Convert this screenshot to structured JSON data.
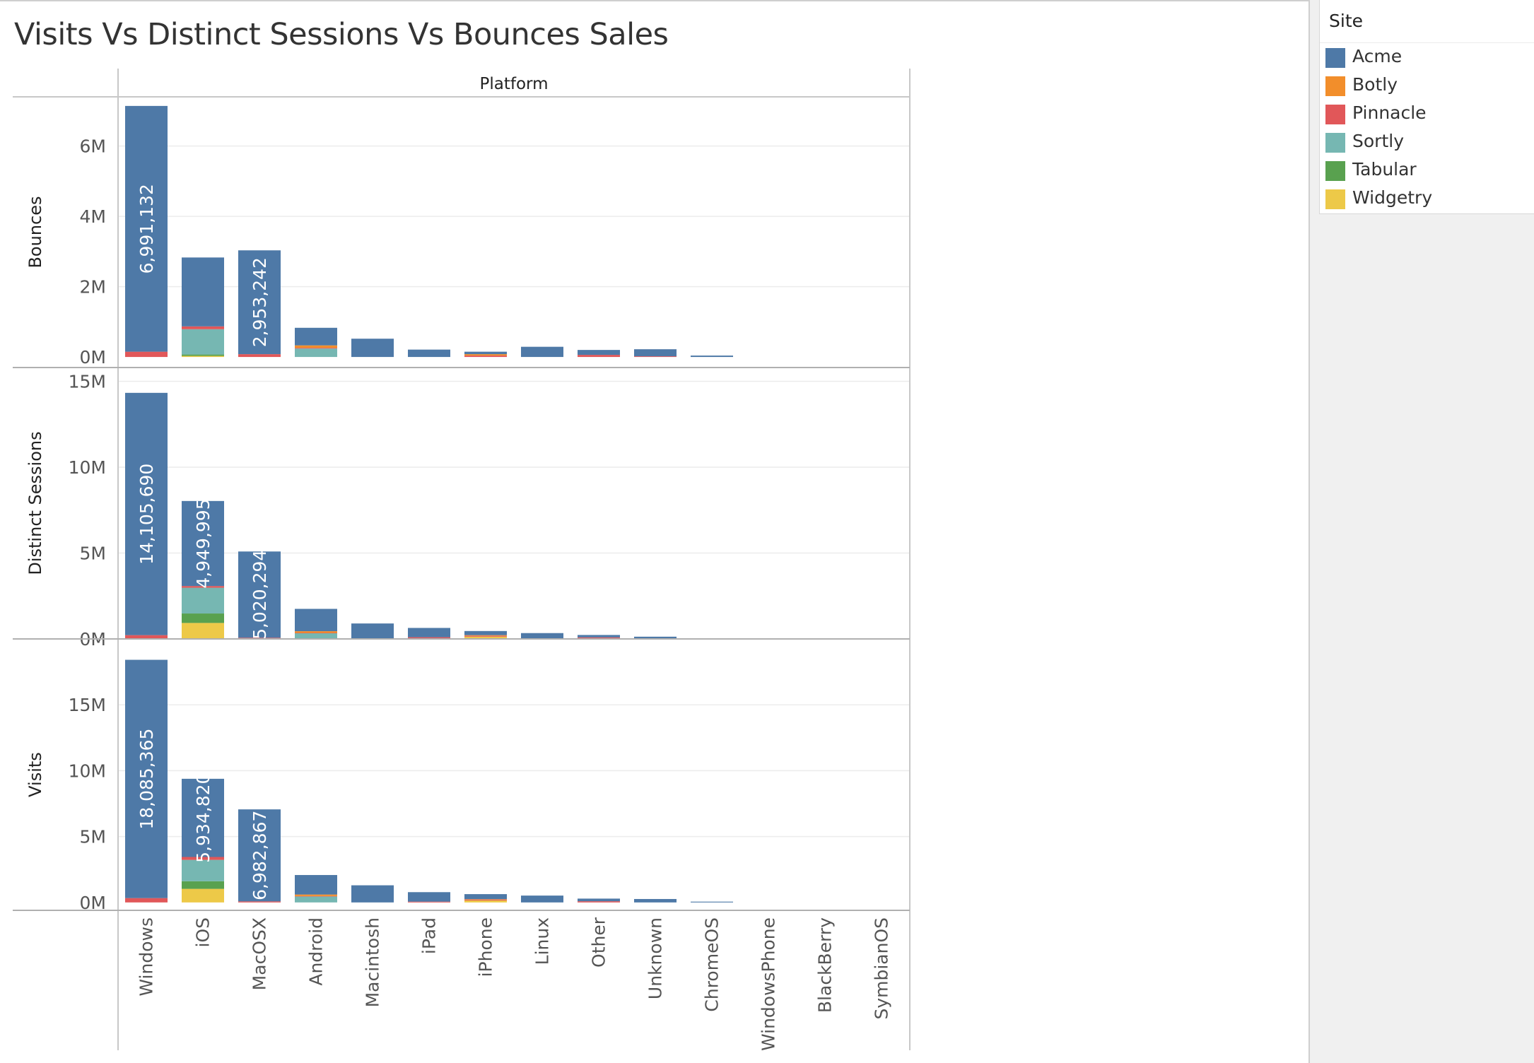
{
  "title": "Visits Vs Distinct Sessions Vs Bounces Sales",
  "legend": {
    "title": "Site",
    "items": [
      {
        "label": "Acme",
        "color": "#4e79a7"
      },
      {
        "label": "Botly",
        "color": "#f28e2b"
      },
      {
        "label": "Pinnacle",
        "color": "#e15759"
      },
      {
        "label": "Sortly",
        "color": "#76b7b2"
      },
      {
        "label": "Tabular",
        "color": "#59a14f"
      },
      {
        "label": "Widgetry",
        "color": "#edc948"
      }
    ]
  },
  "chart_data": {
    "type": "bar",
    "stacked": true,
    "column_header": "Platform",
    "categories": [
      "Windows",
      "iOS",
      "MacOSX",
      "Android",
      "Macintosh",
      "iPad",
      "iPhone",
      "Linux",
      "Other",
      "Unknown",
      "ChromeOS",
      "WindowsPhone",
      "BlackBerry",
      "SymbianOS"
    ],
    "stack_order": [
      "Widgetry",
      "Tabular",
      "Sortly",
      "Pinnacle",
      "Botly",
      "Acme"
    ],
    "panels": [
      {
        "measure": "Bounces",
        "ylim": [
          -300000,
          7400000
        ],
        "yticks": [
          0,
          2000000,
          4000000,
          6000000
        ],
        "ytick_labels": [
          "0M",
          "2M",
          "4M",
          "6M"
        ],
        "series": [
          {
            "name": "Acme",
            "values": [
              6991132,
              1960000,
              2953242,
              500000,
              520000,
              210000,
              70000,
              290000,
              140000,
              200000,
              40000,
              0,
              0,
              0
            ]
          },
          {
            "name": "Botly",
            "values": [
              0,
              0,
              0,
              70000,
              0,
              0,
              40000,
              0,
              0,
              0,
              0,
              0,
              0,
              0
            ]
          },
          {
            "name": "Pinnacle",
            "values": [
              150000,
              80000,
              80000,
              20000,
              0,
              0,
              40000,
              0,
              60000,
              20000,
              0,
              0,
              0,
              0
            ]
          },
          {
            "name": "Sortly",
            "values": [
              0,
              720000,
              0,
              240000,
              0,
              0,
              0,
              0,
              0,
              0,
              0,
              0,
              0,
              0
            ]
          },
          {
            "name": "Tabular",
            "values": [
              0,
              40000,
              0,
              0,
              0,
              0,
              0,
              0,
              0,
              0,
              0,
              0,
              0,
              0
            ]
          },
          {
            "name": "Widgetry",
            "values": [
              0,
              30000,
              0,
              0,
              0,
              0,
              0,
              0,
              0,
              0,
              0,
              0,
              0,
              0
            ]
          }
        ],
        "data_labels": [
          {
            "category": "Windows",
            "series": "Acme",
            "text": "6,991,132"
          },
          {
            "category": "MacOSX",
            "series": "Acme",
            "text": "2,953,242"
          }
        ]
      },
      {
        "measure": "Distinct Sessions",
        "ylim": [
          0,
          15800000
        ],
        "yticks": [
          0,
          5000000,
          10000000,
          15000000
        ],
        "ytick_labels": [
          "0M",
          "5M",
          "10M",
          "15M"
        ],
        "series": [
          {
            "name": "Acme",
            "values": [
              14105690,
              4949995,
              5020294,
              1300000,
              900000,
              540000,
              240000,
              340000,
              140000,
              130000,
              40000,
              0,
              0,
              0
            ]
          },
          {
            "name": "Botly",
            "values": [
              0,
              0,
              0,
              100000,
              0,
              0,
              40000,
              0,
              0,
              0,
              0,
              0,
              0,
              0
            ]
          },
          {
            "name": "Pinnacle",
            "values": [
              220000,
              100000,
              70000,
              20000,
              0,
              100000,
              50000,
              0,
              90000,
              0,
              0,
              0,
              0,
              0
            ]
          },
          {
            "name": "Sortly",
            "values": [
              0,
              1500000,
              0,
              330000,
              0,
              0,
              0,
              0,
              0,
              0,
              0,
              0,
              0,
              0
            ]
          },
          {
            "name": "Tabular",
            "values": [
              0,
              550000,
              0,
              0,
              0,
              0,
              0,
              0,
              0,
              0,
              0,
              0,
              0,
              0
            ]
          },
          {
            "name": "Widgetry",
            "values": [
              0,
              930000,
              0,
              0,
              0,
              0,
              130000,
              0,
              0,
              0,
              0,
              0,
              0,
              0
            ]
          }
        ],
        "data_labels": [
          {
            "category": "Windows",
            "series": "Acme",
            "text": "14,105,690"
          },
          {
            "category": "iOS",
            "series": "Acme",
            "text": "4,949,995"
          },
          {
            "category": "MacOSX",
            "series": "Acme",
            "text": "5,020,294"
          }
        ]
      },
      {
        "measure": "Visits",
        "ylim": [
          -600000,
          20000000
        ],
        "yticks": [
          0,
          5000000,
          10000000,
          15000000
        ],
        "ytick_labels": [
          "0M",
          "5M",
          "10M",
          "15M"
        ],
        "series": [
          {
            "name": "Acme",
            "values": [
              18085365,
              5934820,
              6982867,
              1480000,
              1300000,
              720000,
              380000,
              520000,
              200000,
              260000,
              60000,
              0,
              0,
              0
            ]
          },
          {
            "name": "Botly",
            "values": [
              0,
              0,
              0,
              120000,
              0,
              0,
              40000,
              0,
              0,
              0,
              0,
              0,
              0,
              0
            ]
          },
          {
            "name": "Pinnacle",
            "values": [
              330000,
              220000,
              80000,
              30000,
              0,
              60000,
              60000,
              0,
              90000,
              0,
              0,
              0,
              0,
              0
            ]
          },
          {
            "name": "Sortly",
            "values": [
              0,
              1620000,
              0,
              450000,
              0,
              0,
              0,
              0,
              0,
              0,
              0,
              0,
              0,
              0
            ]
          },
          {
            "name": "Tabular",
            "values": [
              0,
              580000,
              0,
              0,
              0,
              0,
              0,
              0,
              0,
              0,
              0,
              0,
              0,
              0
            ]
          },
          {
            "name": "Widgetry",
            "values": [
              0,
              1030000,
              0,
              0,
              0,
              0,
              150000,
              0,
              0,
              0,
              0,
              0,
              0,
              0
            ]
          }
        ],
        "data_labels": [
          {
            "category": "Windows",
            "series": "Acme",
            "text": "18,085,365"
          },
          {
            "category": "iOS",
            "series": "Acme",
            "text": "5,934,820"
          },
          {
            "category": "MacOSX",
            "series": "Acme",
            "text": "6,982,867"
          }
        ]
      }
    ],
    "grid": true,
    "legend_position": "top-right"
  }
}
